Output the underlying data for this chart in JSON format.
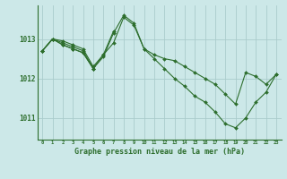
{
  "background_color": "#cce8e8",
  "grid_color": "#aacccc",
  "line_color": "#2d6e2d",
  "xlabel": "Graphe pression niveau de la mer (hPa)",
  "yticks": [
    1011,
    1012,
    1013
  ],
  "ylim": [
    1010.45,
    1013.85
  ],
  "xlim": [
    -0.5,
    23.5
  ],
  "xticks": [
    0,
    1,
    2,
    3,
    4,
    5,
    6,
    7,
    8,
    9,
    10,
    11,
    12,
    13,
    14,
    15,
    16,
    17,
    18,
    19,
    20,
    21,
    22,
    23
  ],
  "series": [
    {
      "x": [
        0,
        1,
        2,
        3,
        4,
        5,
        6,
        7,
        8,
        9,
        10,
        11,
        12,
        13,
        14,
        15,
        16,
        17,
        18,
        19,
        20,
        21,
        22,
        23
      ],
      "y": [
        1012.7,
        1013.0,
        1012.95,
        1012.85,
        1012.75,
        1012.3,
        1012.6,
        1012.9,
        1013.55,
        1013.35,
        1012.75,
        1012.6,
        1012.5,
        1012.45,
        1012.3,
        1012.15,
        1012.0,
        1011.85,
        1011.6,
        1011.35,
        1012.15,
        1012.05,
        1011.85,
        1012.1
      ]
    },
    {
      "x": [
        0,
        1,
        2,
        3,
        4,
        5,
        6,
        7,
        8,
        9,
        10,
        11,
        12,
        13,
        14,
        15,
        16,
        17,
        18,
        19,
        20,
        21,
        22,
        23
      ],
      "y": [
        1012.7,
        1013.0,
        1012.9,
        1012.8,
        1012.7,
        1012.25,
        1012.55,
        1013.15,
        1013.6,
        1013.4,
        1012.75,
        1012.5,
        1012.25,
        1012.0,
        1011.8,
        1011.55,
        1011.4,
        1011.15,
        1010.85,
        1010.75,
        1011.0,
        1011.4,
        1011.65,
        1012.1
      ]
    },
    {
      "x": [
        0,
        1,
        2,
        3,
        4,
        5
      ],
      "y": [
        1012.7,
        1013.0,
        1012.85,
        1012.75,
        1012.65,
        1012.25
      ]
    },
    {
      "x": [
        0,
        1,
        2,
        3,
        4,
        5,
        6,
        7
      ],
      "y": [
        1012.7,
        1013.0,
        1012.85,
        1012.75,
        1012.65,
        1012.25,
        1012.6,
        1013.2
      ]
    }
  ]
}
